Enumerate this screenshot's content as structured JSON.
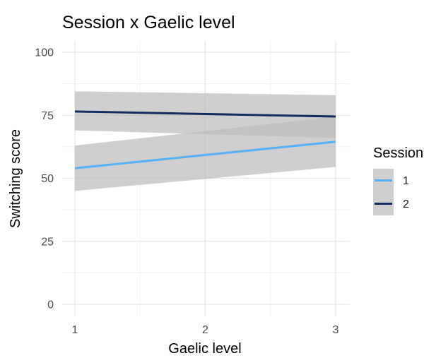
{
  "chart_data": {
    "type": "line",
    "title": "Session x Gaelic level",
    "xlabel": "Gaelic level",
    "ylabel": "Switching score",
    "xlim": [
      1,
      3
    ],
    "ylim": [
      0,
      100
    ],
    "x_ticks": [
      1,
      2,
      3
    ],
    "x_tick_labels": [
      "1",
      "2",
      "3"
    ],
    "y_ticks": [
      0,
      25,
      50,
      75,
      100
    ],
    "y_tick_labels": [
      "0",
      "25",
      "50",
      "75",
      "100"
    ],
    "grid": true,
    "legend": {
      "title": "Session",
      "position": "right"
    },
    "series": [
      {
        "name": "1",
        "color": "#56B1F7",
        "x": [
          1,
          3
        ],
        "y": [
          54,
          64.5
        ],
        "ci_lower": [
          45,
          54.5
        ],
        "ci_upper": [
          63,
          74.5
        ]
      },
      {
        "name": "2",
        "color": "#132B5E",
        "x": [
          1,
          3
        ],
        "y": [
          76.5,
          74.5
        ],
        "ci_lower": [
          69,
          66
        ],
        "ci_upper": [
          84.5,
          83
        ]
      }
    ],
    "ribbon_color": "#bdbdbd"
  }
}
